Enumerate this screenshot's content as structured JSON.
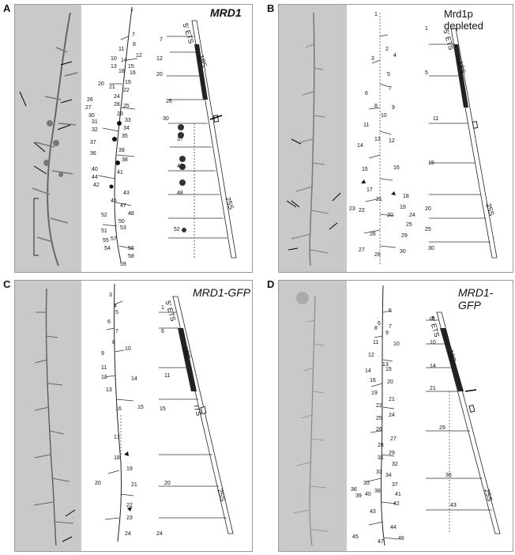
{
  "panels": [
    {
      "letter": "A",
      "title": "MRD1",
      "italic": true,
      "rna_labels": {
        "ets": "5' ETS",
        "s18": "18S",
        "its": "",
        "s25": "25S"
      },
      "tracing_numbers": [
        "1",
        "7",
        "8",
        "11",
        "12",
        "10",
        "14",
        "13",
        "15",
        "16",
        "18",
        "19",
        "20",
        "21",
        "22",
        "26",
        "24",
        "27",
        "25",
        "28",
        "30",
        "29",
        "33",
        "31",
        "34",
        "32",
        "35",
        "37",
        "36",
        "39",
        "38",
        "40",
        "44",
        "41",
        "42",
        "43",
        "46",
        "47",
        "48",
        "50",
        "52",
        "53",
        "51",
        "55",
        "57",
        "54",
        "56",
        "58",
        "59"
      ],
      "schema_numbers": [
        "7",
        "12",
        "20",
        "26",
        "30",
        "37",
        "42",
        "48",
        "52"
      ]
    },
    {
      "letter": "B",
      "title": "Mrd1p depleted",
      "italic": false,
      "rna_labels": {
        "ets": "5' ETS",
        "s18": "18S",
        "its": "",
        "s25": "25S"
      },
      "tracing_numbers": [
        "1",
        "2",
        "3",
        "4",
        "5",
        "6",
        "7",
        "8",
        "9",
        "10",
        "11",
        "12",
        "13",
        "14",
        "15",
        "16",
        "17",
        "18",
        "21",
        "19",
        "20",
        "22",
        "23",
        "24",
        "25",
        "26",
        "27",
        "28",
        "29",
        "30"
      ],
      "schema_numbers": [
        "1",
        "5",
        "11",
        "15",
        "20",
        "25",
        "30"
      ]
    },
    {
      "letter": "C",
      "title": "MRD1-GFP",
      "italic": true,
      "rna_labels": {
        "ets": "5' ETS",
        "s18": "18S",
        "its": "ITS",
        "s25": "25S"
      },
      "tracing_numbers": [
        "3",
        "4",
        "5",
        "6",
        "7",
        "8",
        "9",
        "10",
        "11",
        "12",
        "13",
        "14",
        "15",
        "16",
        "17",
        "18",
        "19",
        "20",
        "21",
        "22",
        "23",
        "24"
      ],
      "schema_numbers": [
        "1",
        "6",
        "11",
        "15",
        "20",
        "24"
      ]
    },
    {
      "letter": "D",
      "title": "MRD1-GFP",
      "italic": true,
      "rna_labels": {
        "ets": "5' ETS",
        "s18": "18S",
        "its": "",
        "s25": "25S"
      },
      "tracing_numbers": [
        "5",
        "6",
        "7",
        "8",
        "9",
        "10",
        "11",
        "12",
        "13",
        "14",
        "15",
        "16",
        "19",
        "20",
        "21",
        "22",
        "24",
        "25",
        "26",
        "27",
        "28",
        "29",
        "31",
        "32",
        "33",
        "34",
        "35",
        "36",
        "37",
        "38",
        "39",
        "40",
        "41",
        "42",
        "43",
        "44",
        "45",
        "46",
        "47"
      ],
      "schema_numbers": [
        "5",
        "10",
        "14",
        "21",
        "29",
        "36",
        "43"
      ]
    }
  ]
}
